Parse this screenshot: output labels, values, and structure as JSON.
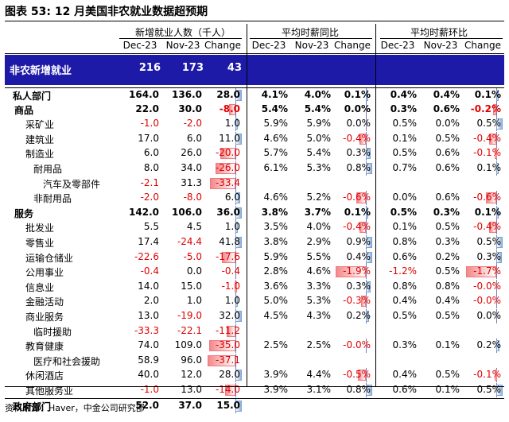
{
  "title": "图表 53: 12 月美国非农就业数据超预期",
  "groups": [
    "新增就业人数（千人）",
    "平均时薪同比",
    "平均时薪环比"
  ],
  "col_headers": [
    "Dec-23",
    "Nov-23",
    "Change",
    "Dec-23",
    "Nov-23",
    "Change",
    "Dec-23",
    "Nov-23",
    "Change"
  ],
  "headline": {
    "label": "非农新增就业",
    "values": [
      "216",
      "173",
      "43"
    ]
  },
  "rows": [
    {
      "label": "私人部门",
      "indent": 0,
      "bold": true,
      "total": true,
      "v": [
        "164.0",
        "136.0",
        "28.0",
        "4.1%",
        "4.0%",
        "0.1%",
        "0.4%",
        "0.4%",
        "0.1%"
      ]
    },
    {
      "label": "商品",
      "indent": 1,
      "bold": true,
      "v": [
        "22.0",
        "30.0",
        "-8.0",
        "5.4%",
        "5.4%",
        "0.0%",
        "0.3%",
        "0.6%",
        "-0.2%"
      ]
    },
    {
      "label": "采矿业",
      "indent": 2,
      "v": [
        "-1.0",
        "-2.0",
        "1.0",
        "5.9%",
        "5.9%",
        "0.0%",
        "0.5%",
        "0.0%",
        "0.5%"
      ]
    },
    {
      "label": "建筑业",
      "indent": 2,
      "v": [
        "17.0",
        "6.0",
        "11.0",
        "4.6%",
        "5.0%",
        "-0.4%",
        "0.1%",
        "0.5%",
        "-0.4%"
      ]
    },
    {
      "label": "制造业",
      "indent": 2,
      "v": [
        "6.0",
        "26.0",
        "-20.0",
        "5.7%",
        "5.4%",
        "0.3%",
        "0.5%",
        "0.6%",
        "-0.1%"
      ]
    },
    {
      "label": "耐用品",
      "indent": 3,
      "v": [
        "8.0",
        "34.0",
        "-26.0",
        "6.1%",
        "5.3%",
        "0.8%",
        "0.7%",
        "0.6%",
        "0.1%"
      ]
    },
    {
      "label": "汽车及零部件",
      "indent": 4,
      "v": [
        "-2.1",
        "31.3",
        "-33.4",
        "",
        "",
        "",
        "",
        "",
        ""
      ]
    },
    {
      "label": "非耐用品",
      "indent": 3,
      "v": [
        "-2.0",
        "-8.0",
        "6.0",
        "4.6%",
        "5.2%",
        "-0.6%",
        "0.0%",
        "0.6%",
        "-0.6%"
      ]
    },
    {
      "label": "服务",
      "indent": 1,
      "bold": true,
      "v": [
        "142.0",
        "106.0",
        "36.0",
        "3.8%",
        "3.7%",
        "0.1%",
        "0.5%",
        "0.3%",
        "0.1%"
      ]
    },
    {
      "label": "批发业",
      "indent": 2,
      "v": [
        "5.5",
        "4.5",
        "1.0",
        "3.5%",
        "4.0%",
        "-0.4%",
        "0.1%",
        "0.5%",
        "-0.4%"
      ]
    },
    {
      "label": "零售业",
      "indent": 2,
      "v": [
        "17.4",
        "-24.4",
        "41.8",
        "3.8%",
        "2.9%",
        "0.9%",
        "0.8%",
        "0.3%",
        "0.5%"
      ]
    },
    {
      "label": "运输仓储业",
      "indent": 2,
      "v": [
        "-22.6",
        "-5.0",
        "-17.6",
        "5.9%",
        "5.5%",
        "0.4%",
        "0.6%",
        "0.2%",
        "0.3%"
      ]
    },
    {
      "label": "公用事业",
      "indent": 2,
      "v": [
        "-0.4",
        "0.0",
        "-0.4",
        "2.8%",
        "4.6%",
        "-1.9%",
        "-1.2%",
        "0.5%",
        "-1.7%"
      ]
    },
    {
      "label": "信息业",
      "indent": 2,
      "v": [
        "14.0",
        "15.0",
        "-1.0",
        "3.6%",
        "3.3%",
        "0.3%",
        "0.8%",
        "0.8%",
        "-0.0%"
      ]
    },
    {
      "label": "金融活动",
      "indent": 2,
      "v": [
        "2.0",
        "1.0",
        "1.0",
        "5.0%",
        "5.3%",
        "-0.3%",
        "0.4%",
        "0.4%",
        "-0.0%"
      ]
    },
    {
      "label": "商业服务",
      "indent": 2,
      "v": [
        "13.0",
        "-19.0",
        "32.0",
        "4.5%",
        "4.3%",
        "0.2%",
        "0.5%",
        "0.5%",
        "0.0%"
      ]
    },
    {
      "label": "临时援助",
      "indent": 3,
      "v": [
        "-33.3",
        "-22.1",
        "-11.2",
        "",
        "",
        "",
        "",
        "",
        ""
      ]
    },
    {
      "label": "教育健康",
      "indent": 2,
      "v": [
        "74.0",
        "109.0",
        "-35.0",
        "2.5%",
        "2.5%",
        "-0.0%",
        "0.3%",
        "0.1%",
        "0.2%"
      ]
    },
    {
      "label": "医疗和社会援助",
      "indent": 3,
      "v": [
        "58.9",
        "96.0",
        "-37.1",
        "",
        "",
        "",
        "",
        "",
        ""
      ]
    },
    {
      "label": "休闲酒店",
      "indent": 2,
      "v": [
        "40.0",
        "12.0",
        "28.0",
        "3.9%",
        "4.4%",
        "-0.5%",
        "0.4%",
        "0.5%",
        "-0.1%"
      ]
    },
    {
      "label": "其他服务业",
      "indent": 2,
      "v": [
        "-1.0",
        "13.0",
        "-14.0",
        "3.9%",
        "3.1%",
        "0.8%",
        "0.6%",
        "0.1%",
        "0.5%"
      ]
    },
    {
      "label": "政府部门",
      "indent": 0,
      "bold": true,
      "total": true,
      "v": [
        "52.0",
        "37.0",
        "15.0",
        "",
        "",
        "",
        "",
        "",
        ""
      ]
    }
  ],
  "source": "资料来源：Haver，中金公司研究部",
  "colors": {
    "header_blue": "#1e1aa8",
    "negative_red": "#e00000",
    "bar_blue": "#93b2dc",
    "bar_red": "#f4878a"
  }
}
